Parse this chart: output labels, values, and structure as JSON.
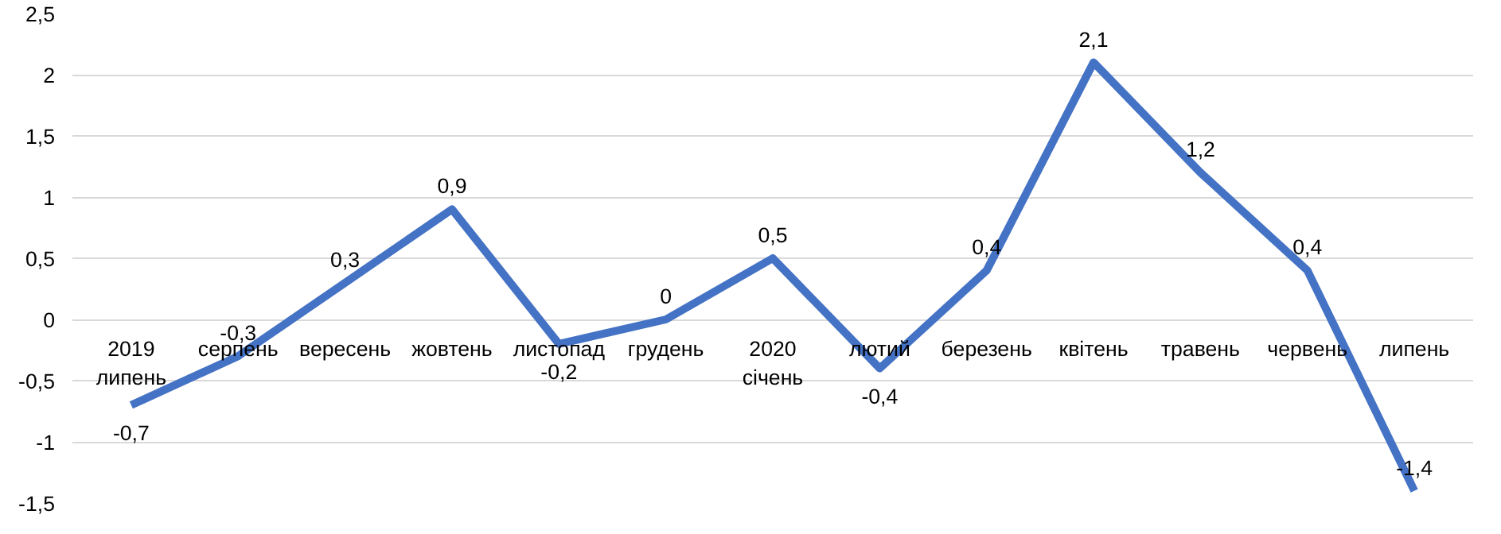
{
  "chart_data": {
    "type": "line",
    "categories": [
      "2019\nлипень",
      "серпень",
      "вересень",
      "жовтень",
      "листопад",
      "грудень",
      "2020\nсічень",
      "лютий",
      "березень",
      "квітень",
      "травень",
      "червень",
      "липень"
    ],
    "series": [
      {
        "color": "#4472c4",
        "values": [
          -0.7,
          -0.3,
          0.3,
          0.9,
          -0.2,
          0,
          0.5,
          -0.4,
          0.4,
          2.1,
          1.2,
          0.4,
          -1.4
        ],
        "value_labels": [
          "-0,7",
          "-0,3",
          "0,3",
          "0,9",
          "-0,2",
          "0",
          "0,5",
          "-0,4",
          "0,4",
          "2,1",
          "1,2",
          "0,4",
          "-1,4"
        ]
      }
    ],
    "ylim": [
      -1.5,
      2.5
    ],
    "yticks": [
      {
        "value": -1.5,
        "label": "-1,5"
      },
      {
        "value": -1,
        "label": "-1"
      },
      {
        "value": -0.5,
        "label": "-0,5"
      },
      {
        "value": 0,
        "label": "0"
      },
      {
        "value": 0.5,
        "label": "0,5"
      },
      {
        "value": 1,
        "label": "1"
      },
      {
        "value": 1.5,
        "label": "1,5"
      },
      {
        "value": 2,
        "label": "2"
      },
      {
        "value": 2.5,
        "label": "2,5"
      }
    ],
    "grid": "y",
    "marker": "none",
    "line_style": "solid"
  }
}
